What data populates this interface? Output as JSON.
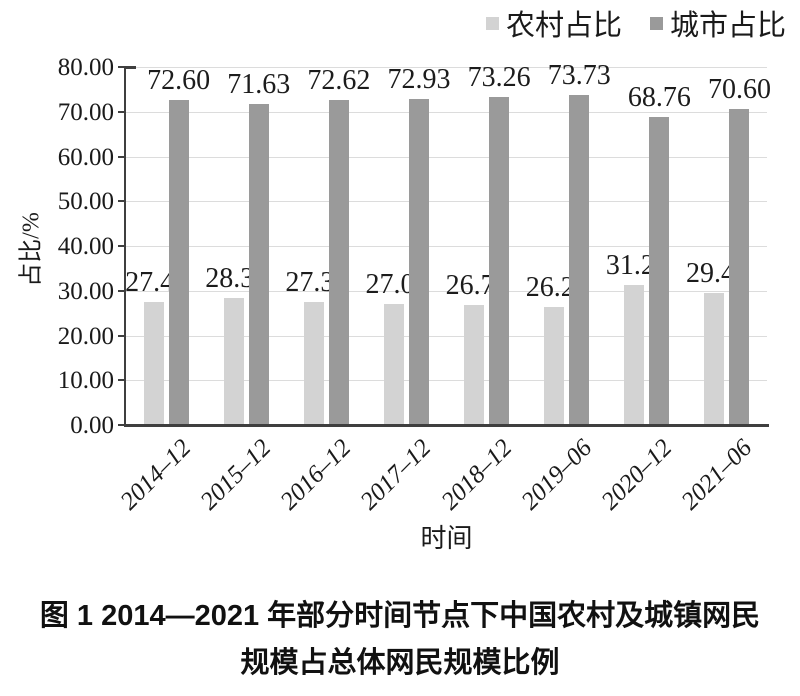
{
  "figure": {
    "caption_line1": "图 1  2014—2021 年部分时间节点下中国农村及城镇网民",
    "caption_line2": "规模占总体网民规模比例"
  },
  "chart_data": {
    "type": "bar",
    "title": "",
    "categories": [
      "2014–12",
      "2015–12",
      "2016–12",
      "2017–12",
      "2018–12",
      "2019–06",
      "2020–12",
      "2021–06"
    ],
    "series": [
      {
        "name": "农村占比",
        "color": "#d3d3d3",
        "values": [
          27.4,
          28.37,
          27.38,
          27.07,
          26.74,
          26.27,
          31.24,
          29.4
        ]
      },
      {
        "name": "城市占比",
        "color": "#9a9a9a",
        "values": [
          72.6,
          71.63,
          72.62,
          72.93,
          73.26,
          73.73,
          68.76,
          70.6
        ]
      }
    ],
    "xlabel": "时间",
    "ylabel": "占比/%",
    "ylim": [
      0,
      80
    ],
    "ytick_step": 10,
    "ytick_decimals": 2,
    "value_label_decimals": 2,
    "grid": true,
    "legend_position": "top-right",
    "axis_color": "#3f3f3f",
    "grid_color": "#dcdcdc",
    "text_color": "#1a1a1a"
  }
}
